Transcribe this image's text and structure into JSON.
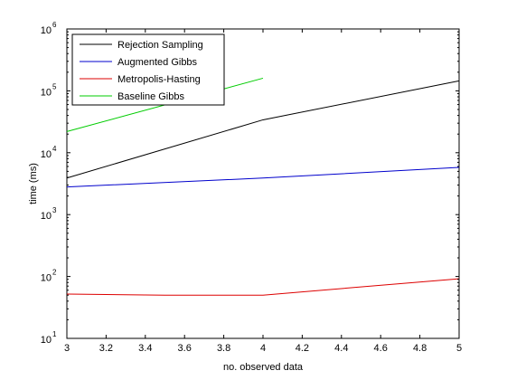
{
  "chart_data": {
    "type": "line",
    "title": "",
    "xlabel": "no. observed data",
    "ylabel": "time (ms)",
    "xlim": [
      3,
      5
    ],
    "ylim": [
      10,
      1000000
    ],
    "yscale": "log",
    "grid": false,
    "legend_position": "top-left",
    "x_ticks": [
      "3",
      "3.2",
      "3.4",
      "3.6",
      "3.8",
      "4",
      "4.2",
      "4.4",
      "4.6",
      "4.8",
      "5"
    ],
    "y_ticks": [
      {
        "base": "10",
        "exp": "1"
      },
      {
        "base": "10",
        "exp": "2"
      },
      {
        "base": "10",
        "exp": "3"
      },
      {
        "base": "10",
        "exp": "4"
      },
      {
        "base": "10",
        "exp": "5"
      },
      {
        "base": "10",
        "exp": "6"
      }
    ],
    "series": [
      {
        "name": "Rejection Sampling",
        "color": "#000000",
        "x": [
          3,
          4,
          5
        ],
        "y": [
          3900,
          34000,
          145000
        ]
      },
      {
        "name": "Augmented Gibbs",
        "color": "#0000cc",
        "x": [
          3,
          4,
          5
        ],
        "y": [
          2800,
          3900,
          5800
        ]
      },
      {
        "name": "Metropolis-Hasting",
        "color": "#dd0000",
        "x": [
          3,
          3.5,
          4,
          5
        ],
        "y": [
          52,
          50,
          50,
          92
        ]
      },
      {
        "name": "Baseline Gibbs",
        "color": "#00cc00",
        "x": [
          3,
          4
        ],
        "y": [
          22000,
          160000
        ]
      }
    ]
  }
}
